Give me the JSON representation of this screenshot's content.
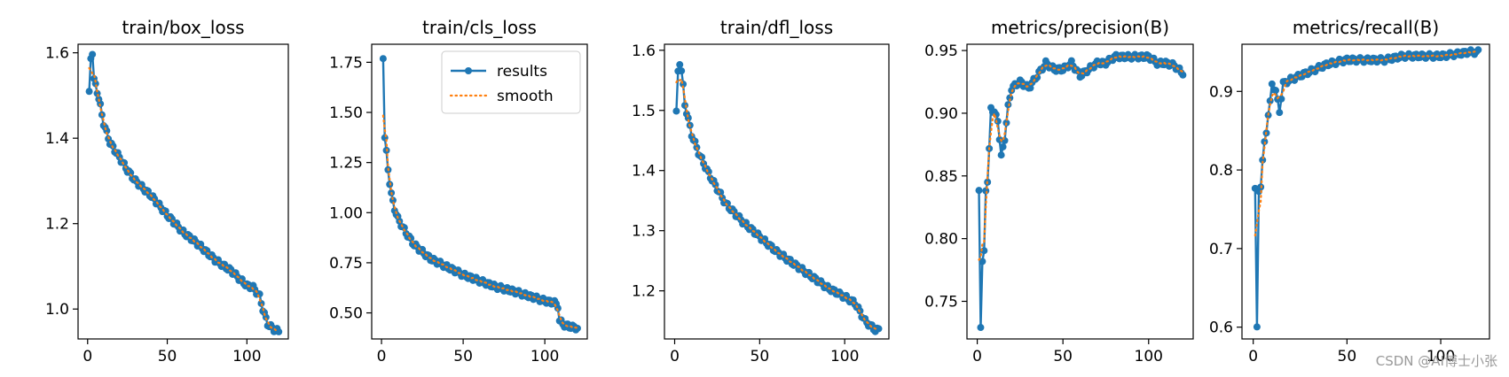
{
  "watermark": "CSDN @AI博士小张",
  "colors": {
    "results": "#1f77b4",
    "smooth": "#ff7f0e",
    "axis": "#000000"
  },
  "legend": {
    "placement": "upper right",
    "panel": 1,
    "entries": [
      "results",
      "smooth"
    ]
  },
  "chart_data": [
    {
      "type": "line",
      "title": "train/box_loss",
      "xlabel": "",
      "ylabel": "",
      "xlim": [
        -6,
        126
      ],
      "ylim": [
        0.93,
        1.62
      ],
      "xticks": [
        0,
        50,
        100
      ],
      "xtick_labels": [
        "0",
        "50",
        "100"
      ],
      "yticks": [
        1.0,
        1.2,
        1.4,
        1.6
      ],
      "ytick_labels": [
        "1.0",
        "1.2",
        "1.4",
        "1.6"
      ],
      "anchors": [
        [
          1,
          1.505
        ],
        [
          2,
          1.59
        ],
        [
          3,
          1.6
        ],
        [
          4,
          1.535
        ],
        [
          5,
          1.525
        ],
        [
          6,
          1.51
        ],
        [
          8,
          1.475
        ],
        [
          10,
          1.435
        ],
        [
          14,
          1.39
        ],
        [
          20,
          1.355
        ],
        [
          25,
          1.325
        ],
        [
          30,
          1.3
        ],
        [
          40,
          1.265
        ],
        [
          50,
          1.22
        ],
        [
          60,
          1.18
        ],
        [
          70,
          1.15
        ],
        [
          80,
          1.115
        ],
        [
          90,
          1.09
        ],
        [
          100,
          1.055
        ],
        [
          104,
          1.05
        ],
        [
          108,
          1.03
        ],
        [
          110,
          1.0
        ],
        [
          113,
          0.965
        ],
        [
          116,
          0.955
        ],
        [
          118,
          0.95
        ],
        [
          120,
          0.948
        ]
      ],
      "series": [
        {
          "name": "results",
          "style": "solid-marker"
        },
        {
          "name": "smooth",
          "style": "dotted"
        }
      ]
    },
    {
      "type": "line",
      "title": "train/cls_loss",
      "xlabel": "",
      "ylabel": "",
      "xlim": [
        -6,
        126
      ],
      "ylim": [
        0.37,
        1.84
      ],
      "xticks": [
        0,
        50,
        100
      ],
      "xtick_labels": [
        "0",
        "50",
        "100"
      ],
      "yticks": [
        0.5,
        0.75,
        1.0,
        1.25,
        1.5,
        1.75
      ],
      "ytick_labels": [
        "0.50",
        "0.75",
        "1.00",
        "1.25",
        "1.50",
        "1.75"
      ],
      "anchors": [
        [
          1,
          1.78
        ],
        [
          2,
          1.37
        ],
        [
          3,
          1.3
        ],
        [
          4,
          1.22
        ],
        [
          5,
          1.15
        ],
        [
          6,
          1.09
        ],
        [
          8,
          1.02
        ],
        [
          10,
          0.97
        ],
        [
          15,
          0.9
        ],
        [
          20,
          0.84
        ],
        [
          30,
          0.77
        ],
        [
          40,
          0.73
        ],
        [
          50,
          0.69
        ],
        [
          60,
          0.66
        ],
        [
          70,
          0.63
        ],
        [
          80,
          0.61
        ],
        [
          90,
          0.585
        ],
        [
          100,
          0.56
        ],
        [
          106,
          0.55
        ],
        [
          108,
          0.535
        ],
        [
          109,
          0.46
        ],
        [
          112,
          0.44
        ],
        [
          116,
          0.43
        ],
        [
          120,
          0.425
        ]
      ],
      "series": [
        {
          "name": "results",
          "style": "solid-marker"
        },
        {
          "name": "smooth",
          "style": "dotted"
        }
      ]
    },
    {
      "type": "line",
      "title": "train/dfl_loss",
      "xlabel": "",
      "ylabel": "",
      "xlim": [
        -6,
        126
      ],
      "ylim": [
        1.12,
        1.61
      ],
      "xticks": [
        0,
        50,
        100
      ],
      "xtick_labels": [
        "0",
        "50",
        "100"
      ],
      "yticks": [
        1.2,
        1.3,
        1.4,
        1.5,
        1.6
      ],
      "ytick_labels": [
        "1.2",
        "1.3",
        "1.4",
        "1.5",
        "1.6"
      ],
      "anchors": [
        [
          1,
          1.495
        ],
        [
          2,
          1.565
        ],
        [
          3,
          1.58
        ],
        [
          4,
          1.565
        ],
        [
          5,
          1.54
        ],
        [
          6,
          1.51
        ],
        [
          8,
          1.485
        ],
        [
          10,
          1.46
        ],
        [
          14,
          1.43
        ],
        [
          20,
          1.395
        ],
        [
          25,
          1.37
        ],
        [
          30,
          1.345
        ],
        [
          40,
          1.315
        ],
        [
          50,
          1.29
        ],
        [
          60,
          1.265
        ],
        [
          70,
          1.245
        ],
        [
          80,
          1.225
        ],
        [
          90,
          1.205
        ],
        [
          100,
          1.19
        ],
        [
          106,
          1.18
        ],
        [
          108,
          1.17
        ],
        [
          110,
          1.16
        ],
        [
          112,
          1.15
        ],
        [
          116,
          1.14
        ],
        [
          118,
          1.135
        ],
        [
          120,
          1.135
        ]
      ],
      "series": [
        {
          "name": "results",
          "style": "solid-marker"
        },
        {
          "name": "smooth",
          "style": "dotted"
        }
      ]
    },
    {
      "type": "line",
      "title": "metrics/precision(B)",
      "xlabel": "",
      "ylabel": "",
      "xlim": [
        -6,
        126
      ],
      "ylim": [
        0.72,
        0.955
      ],
      "xticks": [
        0,
        50,
        100
      ],
      "xtick_labels": [
        "0",
        "50",
        "100"
      ],
      "yticks": [
        0.75,
        0.8,
        0.85,
        0.9,
        0.95
      ],
      "ytick_labels": [
        "0.75",
        "0.80",
        "0.85",
        "0.90",
        "0.95"
      ],
      "anchors": [
        [
          1,
          0.84
        ],
        [
          2,
          0.73
        ],
        [
          3,
          0.78
        ],
        [
          4,
          0.79
        ],
        [
          5,
          0.84
        ],
        [
          6,
          0.845
        ],
        [
          7,
          0.87
        ],
        [
          8,
          0.905
        ],
        [
          10,
          0.9
        ],
        [
          12,
          0.895
        ],
        [
          14,
          0.865
        ],
        [
          16,
          0.88
        ],
        [
          18,
          0.905
        ],
        [
          20,
          0.92
        ],
        [
          25,
          0.925
        ],
        [
          30,
          0.92
        ],
        [
          35,
          0.93
        ],
        [
          40,
          0.94
        ],
        [
          45,
          0.935
        ],
        [
          50,
          0.935
        ],
        [
          55,
          0.94
        ],
        [
          60,
          0.93
        ],
        [
          65,
          0.935
        ],
        [
          70,
          0.94
        ],
        [
          75,
          0.94
        ],
        [
          80,
          0.945
        ],
        [
          85,
          0.945
        ],
        [
          90,
          0.945
        ],
        [
          95,
          0.945
        ],
        [
          100,
          0.945
        ],
        [
          105,
          0.94
        ],
        [
          110,
          0.94
        ],
        [
          115,
          0.938
        ],
        [
          120,
          0.932
        ]
      ],
      "series": [
        {
          "name": "results",
          "style": "solid-marker"
        },
        {
          "name": "smooth",
          "style": "dotted"
        }
      ]
    },
    {
      "type": "line",
      "title": "metrics/recall(B)",
      "xlabel": "",
      "ylabel": "",
      "xlim": [
        -6,
        126
      ],
      "ylim": [
        0.585,
        0.96
      ],
      "xticks": [
        0,
        50,
        100
      ],
      "xtick_labels": [
        "0",
        "50",
        "100"
      ],
      "yticks": [
        0.6,
        0.7,
        0.8,
        0.9
      ],
      "ytick_labels": [
        "0.6",
        "0.7",
        "0.8",
        "0.9"
      ],
      "anchors": [
        [
          1,
          0.775
        ],
        [
          2,
          0.598
        ],
        [
          3,
          0.775
        ],
        [
          4,
          0.78
        ],
        [
          5,
          0.81
        ],
        [
          6,
          0.835
        ],
        [
          7,
          0.85
        ],
        [
          8,
          0.87
        ],
        [
          9,
          0.885
        ],
        [
          10,
          0.91
        ],
        [
          12,
          0.9
        ],
        [
          14,
          0.875
        ],
        [
          16,
          0.91
        ],
        [
          20,
          0.915
        ],
        [
          25,
          0.92
        ],
        [
          30,
          0.925
        ],
        [
          40,
          0.935
        ],
        [
          50,
          0.94
        ],
        [
          60,
          0.94
        ],
        [
          70,
          0.94
        ],
        [
          80,
          0.945
        ],
        [
          90,
          0.945
        ],
        [
          100,
          0.945
        ],
        [
          110,
          0.948
        ],
        [
          115,
          0.95
        ],
        [
          120,
          0.95
        ]
      ],
      "series": [
        {
          "name": "results",
          "style": "solid-marker"
        },
        {
          "name": "smooth",
          "style": "dotted"
        }
      ]
    }
  ]
}
